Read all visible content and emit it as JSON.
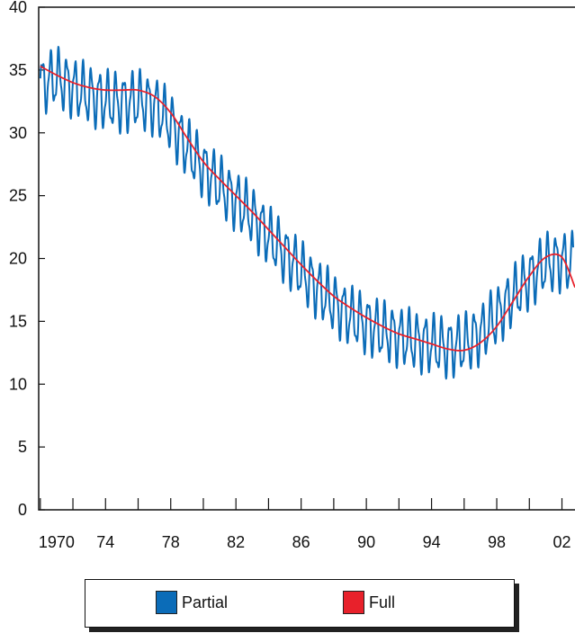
{
  "chart_data": {
    "type": "line",
    "title": "",
    "xlabel": "",
    "ylabel": "",
    "xlim": [
      1969.9,
      2002.8
    ],
    "ylim": [
      0,
      40
    ],
    "y_ticks": [
      0,
      5,
      10,
      15,
      20,
      25,
      30,
      35,
      40
    ],
    "x_ticks": [
      1970,
      1972,
      1974,
      1976,
      1978,
      1980,
      1982,
      1984,
      1986,
      1988,
      1990,
      1992,
      1994,
      1996,
      1998,
      2000,
      2002
    ],
    "x_tick_labels": [
      {
        "x": 1971,
        "label": "1970"
      },
      {
        "x": 1974,
        "label": "74"
      },
      {
        "x": 1978,
        "label": "78"
      },
      {
        "x": 1982,
        "label": "82"
      },
      {
        "x": 1986,
        "label": "86"
      },
      {
        "x": 1990,
        "label": "90"
      },
      {
        "x": 1994,
        "label": "94"
      },
      {
        "x": 1998,
        "label": "98"
      },
      {
        "x": 2002,
        "label": "02"
      }
    ],
    "grid": false,
    "legend_position": "bottom",
    "series": [
      {
        "name": "Partial",
        "color": "#0b6cb8",
        "style": "seasonal",
        "trend": [
          [
            1970,
            33.8
          ],
          [
            1971,
            34.4
          ],
          [
            1972,
            33.6
          ],
          [
            1973,
            33.0
          ],
          [
            1974,
            32.6
          ],
          [
            1975,
            32.4
          ],
          [
            1976,
            32.6
          ],
          [
            1977,
            32.2
          ],
          [
            1978,
            30.8
          ],
          [
            1979,
            28.8
          ],
          [
            1980,
            27.2
          ],
          [
            1981,
            25.8
          ],
          [
            1982,
            24.6
          ],
          [
            1983,
            23.4
          ],
          [
            1984,
            21.8
          ],
          [
            1985,
            20.4
          ],
          [
            1986,
            19.0
          ],
          [
            1987,
            17.6
          ],
          [
            1988,
            16.4
          ],
          [
            1989,
            15.4
          ],
          [
            1990,
            14.8
          ],
          [
            1991,
            14.2
          ],
          [
            1992,
            13.8
          ],
          [
            1993,
            13.4
          ],
          [
            1994,
            13.2
          ],
          [
            1995,
            12.9
          ],
          [
            1996,
            13.2
          ],
          [
            1997,
            14.0
          ],
          [
            1998,
            15.4
          ],
          [
            1999,
            17.0
          ],
          [
            2000,
            18.4
          ],
          [
            2001,
            19.6
          ],
          [
            2002,
            19.8
          ],
          [
            2002.7,
            19.6
          ]
        ],
        "seasonal_amplitude": 2.0,
        "cycles_per_year": 2
      },
      {
        "name": "Full",
        "color": "#e8212b",
        "style": "smooth",
        "points": [
          [
            1970,
            35.3
          ],
          [
            1971,
            34.6
          ],
          [
            1972,
            34.0
          ],
          [
            1973,
            33.6
          ],
          [
            1974,
            33.4
          ],
          [
            1975,
            33.4
          ],
          [
            1976,
            33.4
          ],
          [
            1977,
            32.9
          ],
          [
            1978,
            31.6
          ],
          [
            1979,
            29.6
          ],
          [
            1980,
            27.7
          ],
          [
            1981,
            26.3
          ],
          [
            1982,
            25.0
          ],
          [
            1983,
            23.7
          ],
          [
            1984,
            22.3
          ],
          [
            1985,
            20.9
          ],
          [
            1986,
            19.5
          ],
          [
            1987,
            18.2
          ],
          [
            1988,
            17.0
          ],
          [
            1989,
            16.1
          ],
          [
            1990,
            15.3
          ],
          [
            1991,
            14.6
          ],
          [
            1992,
            14.0
          ],
          [
            1993,
            13.6
          ],
          [
            1994,
            13.2
          ],
          [
            1995,
            12.8
          ],
          [
            1996,
            12.7
          ],
          [
            1997,
            13.3
          ],
          [
            1998,
            14.6
          ],
          [
            1999,
            16.6
          ],
          [
            2000,
            18.6
          ],
          [
            2001,
            20.1
          ],
          [
            2002,
            20.1
          ],
          [
            2002.8,
            17.7
          ]
        ]
      }
    ]
  },
  "legend": {
    "items": [
      {
        "label": "Partial",
        "color": "#0b6cb8"
      },
      {
        "label": "Full",
        "color": "#e8212b"
      }
    ]
  }
}
